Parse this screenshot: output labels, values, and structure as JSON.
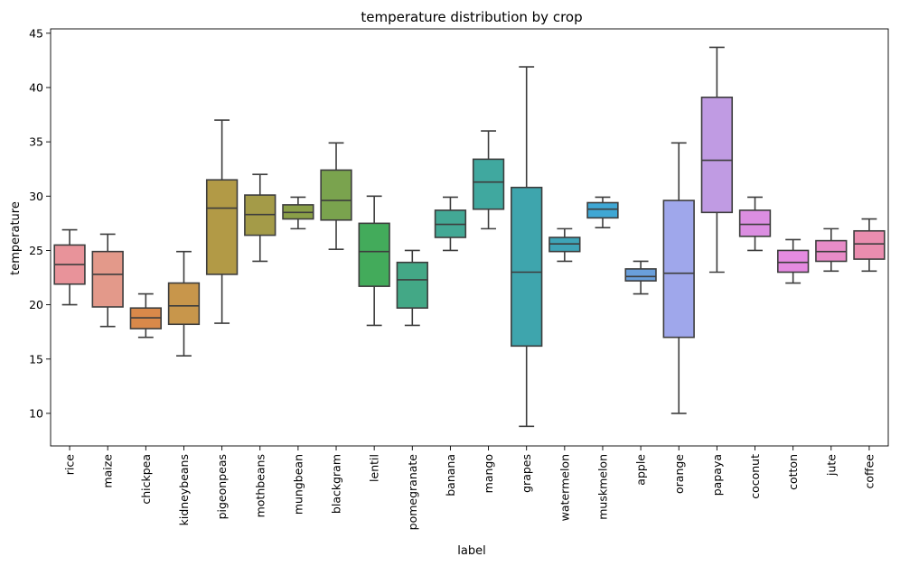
{
  "chart_data": {
    "type": "box",
    "title": "temperature distribution by crop",
    "xlabel": "label",
    "ylabel": "temperature",
    "ylim": [
      7.0,
      45.4
    ],
    "yticks": [
      10,
      15,
      20,
      25,
      30,
      35,
      40,
      45
    ],
    "grid": false,
    "categories": [
      "rice",
      "maize",
      "chickpea",
      "kidneybeans",
      "pigeonpeas",
      "mothbeans",
      "mungbean",
      "blackgram",
      "lentil",
      "pomegranate",
      "banana",
      "mango",
      "grapes",
      "watermelon",
      "muskmelon",
      "apple",
      "orange",
      "papaya",
      "coconut",
      "cotton",
      "jute",
      "coffee"
    ],
    "colors": [
      "#e8939a",
      "#e3998a",
      "#d9894a",
      "#c8964b",
      "#b29a46",
      "#a49b48",
      "#8a9f48",
      "#7aa34e",
      "#43ab5b",
      "#43a886",
      "#43a895",
      "#40a89f",
      "#3ea5ad",
      "#3ea4b7",
      "#3fa7d4",
      "#6a9fdb",
      "#9fa7eb",
      "#c09be3",
      "#db8ee1",
      "#e58be1",
      "#e88cc8",
      "#ea8daf"
    ],
    "boxes": [
      {
        "label": "rice",
        "whisker_low": 20.0,
        "q1": 21.9,
        "median": 23.7,
        "q3": 25.5,
        "whisker_high": 26.9
      },
      {
        "label": "maize",
        "whisker_low": 18.0,
        "q1": 19.8,
        "median": 22.8,
        "q3": 24.9,
        "whisker_high": 26.5
      },
      {
        "label": "chickpea",
        "whisker_low": 17.0,
        "q1": 17.8,
        "median": 18.8,
        "q3": 19.7,
        "whisker_high": 21.0
      },
      {
        "label": "kidneybeans",
        "whisker_low": 15.3,
        "q1": 18.2,
        "median": 19.9,
        "q3": 22.0,
        "whisker_high": 24.9
      },
      {
        "label": "pigeonpeas",
        "whisker_low": 18.3,
        "q1": 22.8,
        "median": 28.9,
        "q3": 31.5,
        "whisker_high": 37.0
      },
      {
        "label": "mothbeans",
        "whisker_low": 24.0,
        "q1": 26.4,
        "median": 28.3,
        "q3": 30.1,
        "whisker_high": 32.0
      },
      {
        "label": "mungbean",
        "whisker_low": 27.0,
        "q1": 27.9,
        "median": 28.5,
        "q3": 29.2,
        "whisker_high": 29.9
      },
      {
        "label": "blackgram",
        "whisker_low": 25.1,
        "q1": 27.8,
        "median": 29.6,
        "q3": 32.4,
        "whisker_high": 34.9
      },
      {
        "label": "lentil",
        "whisker_low": 18.1,
        "q1": 21.7,
        "median": 24.9,
        "q3": 27.5,
        "whisker_high": 30.0
      },
      {
        "label": "pomegranate",
        "whisker_low": 18.1,
        "q1": 19.7,
        "median": 22.3,
        "q3": 23.9,
        "whisker_high": 25.0
      },
      {
        "label": "banana",
        "whisker_low": 25.0,
        "q1": 26.2,
        "median": 27.4,
        "q3": 28.7,
        "whisker_high": 29.9
      },
      {
        "label": "mango",
        "whisker_low": 27.0,
        "q1": 28.8,
        "median": 31.3,
        "q3": 33.4,
        "whisker_high": 36.0
      },
      {
        "label": "grapes",
        "whisker_low": 8.8,
        "q1": 16.2,
        "median": 23.0,
        "q3": 30.8,
        "whisker_high": 41.9
      },
      {
        "label": "watermelon",
        "whisker_low": 24.0,
        "q1": 24.9,
        "median": 25.6,
        "q3": 26.2,
        "whisker_high": 27.0
      },
      {
        "label": "muskmelon",
        "whisker_low": 27.1,
        "q1": 28.0,
        "median": 28.8,
        "q3": 29.4,
        "whisker_high": 29.9
      },
      {
        "label": "apple",
        "whisker_low": 21.0,
        "q1": 22.2,
        "median": 22.6,
        "q3": 23.3,
        "whisker_high": 24.0
      },
      {
        "label": "orange",
        "whisker_low": 10.0,
        "q1": 17.0,
        "median": 22.9,
        "q3": 29.6,
        "whisker_high": 34.9
      },
      {
        "label": "papaya",
        "whisker_low": 23.0,
        "q1": 28.5,
        "median": 33.3,
        "q3": 39.1,
        "whisker_high": 43.7
      },
      {
        "label": "coconut",
        "whisker_low": 25.0,
        "q1": 26.3,
        "median": 27.4,
        "q3": 28.7,
        "whisker_high": 29.9
      },
      {
        "label": "cotton",
        "whisker_low": 22.0,
        "q1": 23.0,
        "median": 23.9,
        "q3": 25.0,
        "whisker_high": 26.0
      },
      {
        "label": "jute",
        "whisker_low": 23.1,
        "q1": 24.0,
        "median": 24.9,
        "q3": 25.9,
        "whisker_high": 27.0
      },
      {
        "label": "coffee",
        "whisker_low": 23.1,
        "q1": 24.2,
        "median": 25.6,
        "q3": 26.8,
        "whisker_high": 27.9
      }
    ]
  }
}
